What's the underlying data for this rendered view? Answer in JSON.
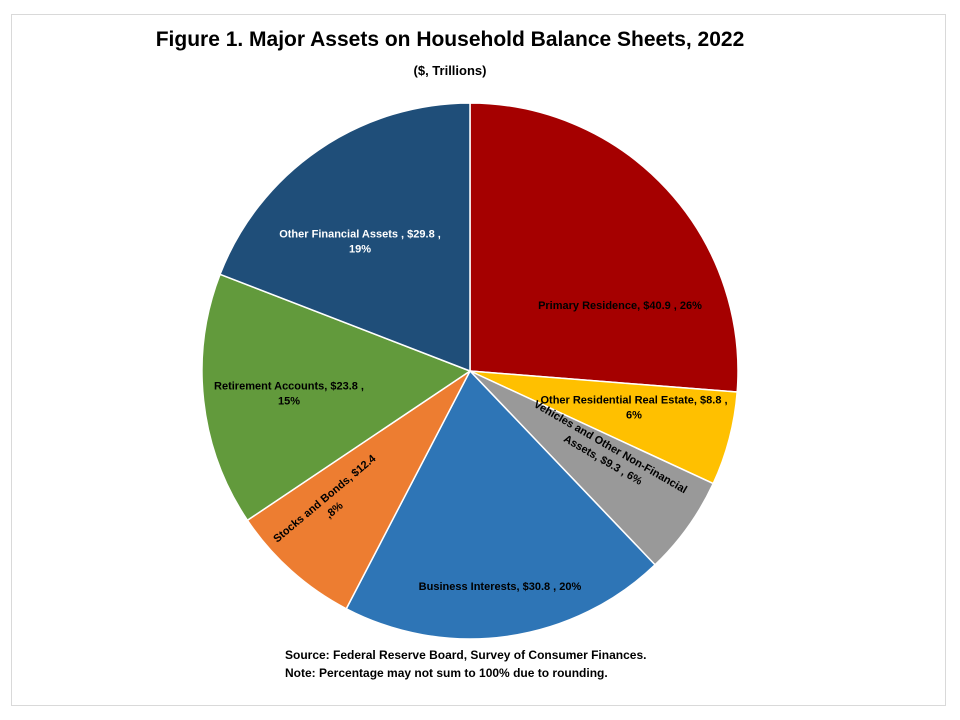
{
  "chart_data": {
    "type": "pie",
    "title": "Figure 1. Major Assets on Household Balance Sheets, 2022",
    "subtitle": "($, Trillions)",
    "slices": [
      {
        "key": "primary-residence",
        "label": "Primary Residence,  $40.9 , 26%",
        "lines": [
          "Primary Residence,  $40.9 , 26%"
        ],
        "value": 40.9,
        "percent": 26,
        "color": "#A50000"
      },
      {
        "key": "other-residential-real-estate",
        "label": "Other Residential Real Estate,  $8.8 , 6%",
        "lines": [
          "Other Residential  Real Estate,  $8.8 ,",
          "6%"
        ],
        "value": 8.8,
        "percent": 6,
        "color": "#FFC000"
      },
      {
        "key": "vehicles-non-financial",
        "label": "Vehicles and Other Non-Financial Assets,  $9.3 , 6%",
        "lines": [
          "Vehicles and Other Non-Financial",
          "Assets,  $9.3 , 6%"
        ],
        "value": 9.3,
        "percent": 6,
        "color": "#999999"
      },
      {
        "key": "business-interests",
        "label": "Business  Interests,  $30.8 , 20%",
        "lines": [
          "Business  Interests,  $30.8 , 20%"
        ],
        "value": 30.8,
        "percent": 20,
        "color": "#2E75B6"
      },
      {
        "key": "stocks-and-bonds",
        "label": "Stocks and Bonds,  $12.4 ,8%",
        "lines": [
          "Stocks and Bonds,  $12.4",
          ",8%"
        ],
        "value": 12.4,
        "percent": 8,
        "color": "#ED7D31"
      },
      {
        "key": "retirement-accounts",
        "label": "Retirement Accounts,  $23.8 , 15%",
        "lines": [
          "Retirement Accounts,  $23.8 ,",
          "15%"
        ],
        "value": 23.8,
        "percent": 15,
        "color": "#629A3C"
      },
      {
        "key": "other-financial-assets",
        "label": "Other Financial  Assets ,  $29.8 , 19%",
        "lines": [
          "Other Financial  Assets ,  $29.8 ,",
          "19%"
        ],
        "value": 29.8,
        "percent": 19,
        "color": "#1F4E79"
      }
    ]
  },
  "notes": {
    "source": "Source: Federal Reserve Board, Survey of Consumer Finances.",
    "rounding": "Note: Percentage may not sum to 100% due to rounding."
  }
}
